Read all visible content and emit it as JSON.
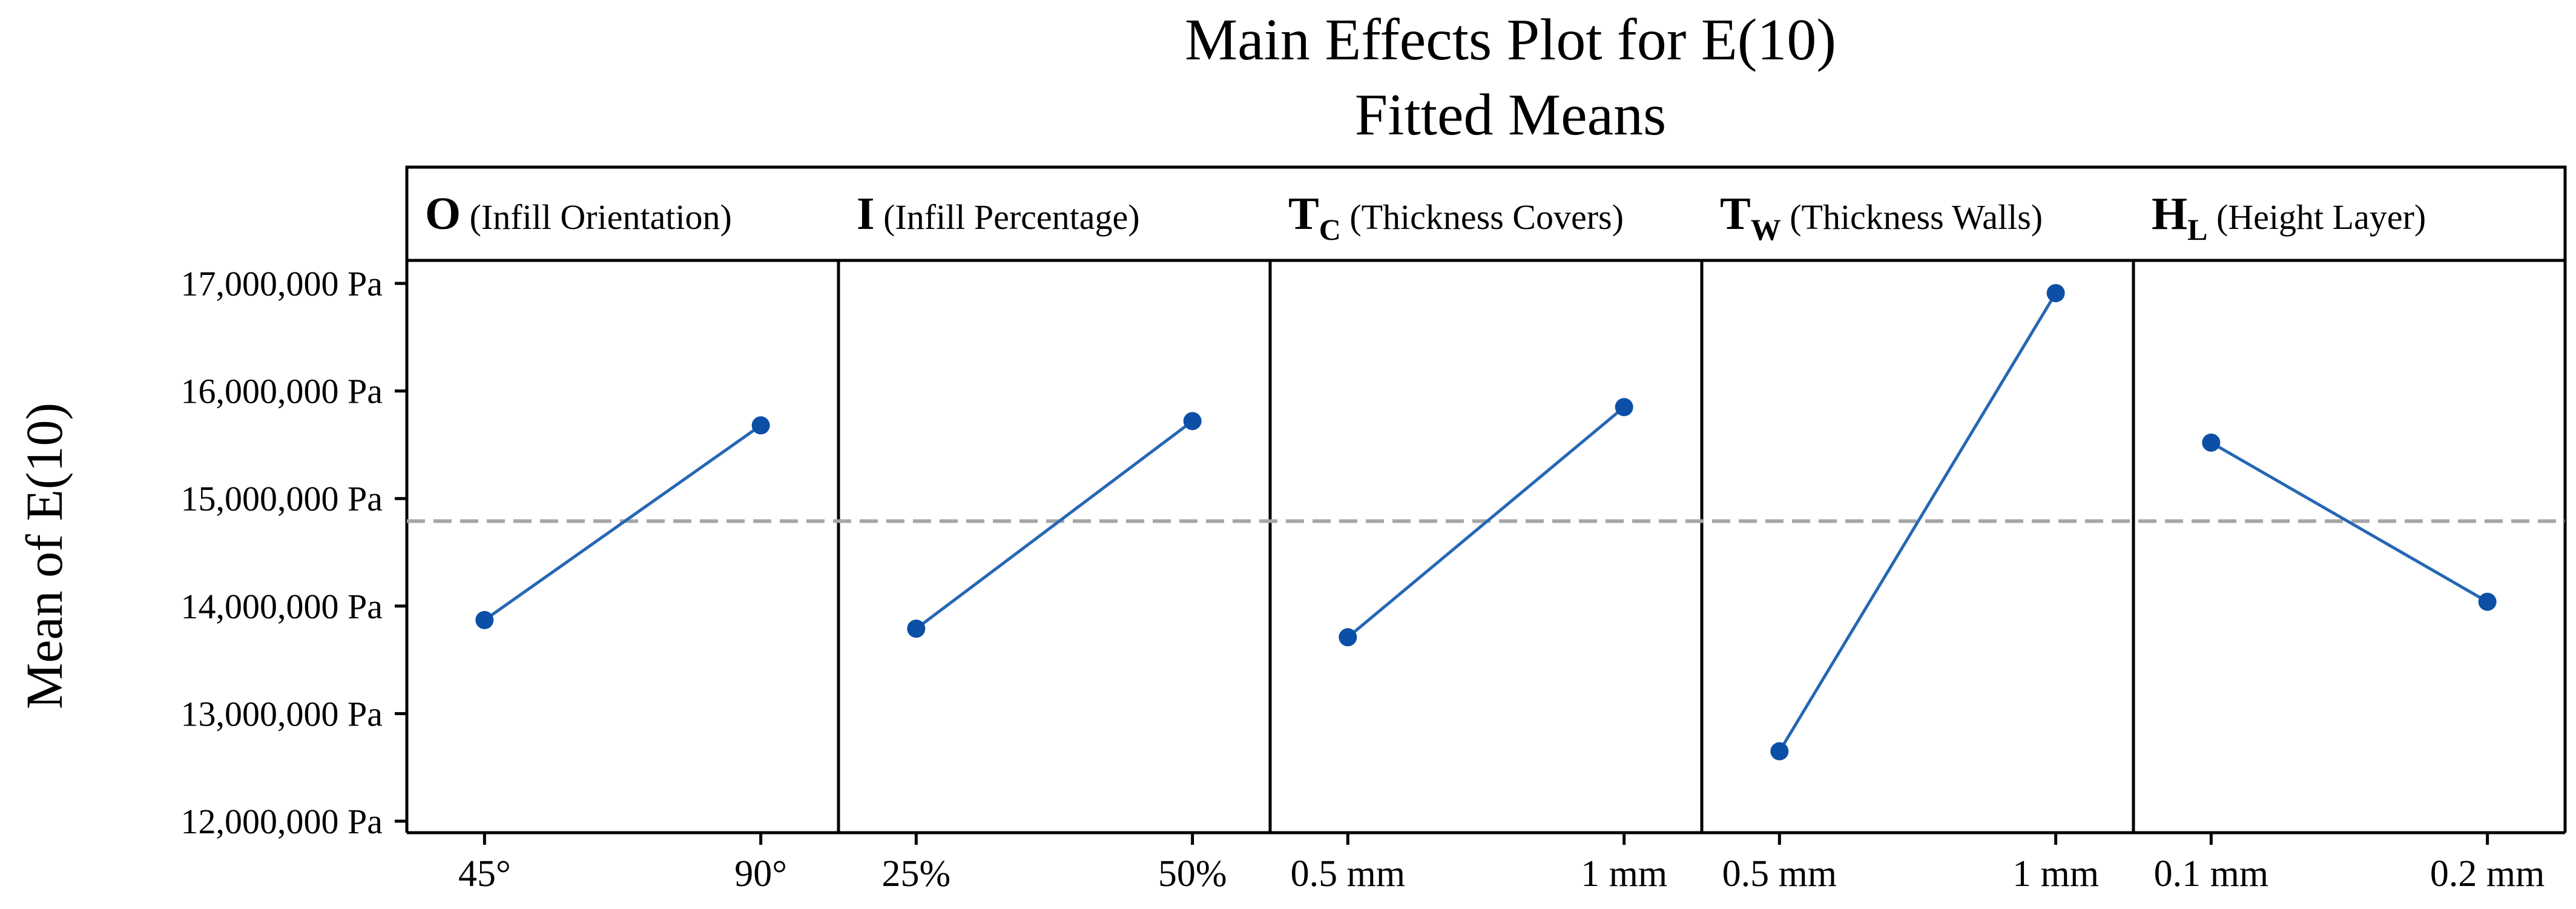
{
  "chart_data": {
    "type": "line",
    "title": "Main Effects Plot for E(10)",
    "subtitle": "Fitted Means",
    "ylabel": "Mean of E(10)",
    "ylim": [
      12000000,
      17000000
    ],
    "yticks": [
      12000000,
      13000000,
      14000000,
      15000000,
      16000000,
      17000000
    ],
    "ytick_labels": [
      "12,000,000 Pa",
      "13,000,000 Pa",
      "14,000,000 Pa",
      "15,000,000 Pa",
      "16,000,000 Pa",
      "17,000,000 Pa"
    ],
    "grand_mean": 14790000,
    "grid": false,
    "panels": [
      {
        "symbol": "O",
        "subscript": "",
        "name": "(Infill Orientation)",
        "categories": [
          "45°",
          "90°"
        ],
        "values": [
          13870000,
          15680000
        ]
      },
      {
        "symbol": "I",
        "subscript": "",
        "name": "(Infill Percentage)",
        "categories": [
          "25%",
          "50%"
        ],
        "values": [
          13790000,
          15720000
        ]
      },
      {
        "symbol": "T",
        "subscript": "C",
        "name": "(Thickness Covers)",
        "categories": [
          "0.5 mm",
          "1 mm"
        ],
        "values": [
          13710000,
          15850000
        ]
      },
      {
        "symbol": "T",
        "subscript": "W",
        "name": "(Thickness Walls)",
        "categories": [
          "0.5 mm",
          "1 mm"
        ],
        "values": [
          12650000,
          16910000
        ]
      },
      {
        "symbol": "H",
        "subscript": "L",
        "name": "(Height Layer)",
        "categories": [
          "0.1 mm",
          "0.2 mm"
        ],
        "values": [
          15520000,
          14040000
        ]
      }
    ],
    "colors": {
      "series": "#2667b5",
      "marker": "#0b4fa6",
      "reference": "#a6a6a6"
    }
  }
}
